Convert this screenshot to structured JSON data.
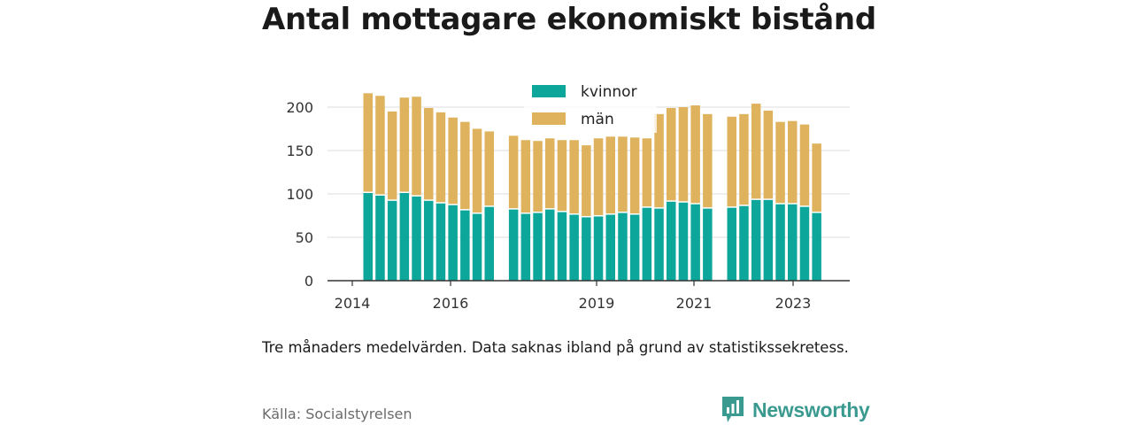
{
  "title": "Antal mottagare ekonomiskt bistånd",
  "note": "Tre månaders medelvärden. Data saknas ibland på grund av statistikssekretess.",
  "source": "Källa: Socialstyrelsen",
  "brand": {
    "name": "Newsworthy",
    "icon": "newsworthy-logo-icon",
    "color": "#3a9a8f"
  },
  "chart_data": {
    "type": "bar",
    "stacked": true,
    "x_ticks": [
      "2014",
      "2016",
      "2019",
      "2021",
      "2023"
    ],
    "y_ticks": [
      0,
      50,
      100,
      150,
      200
    ],
    "ylim": [
      0,
      225
    ],
    "grid": true,
    "legend_position": "top-center",
    "series": [
      {
        "name": "kvinnor",
        "color": "#0ca69a",
        "values": [
          101,
          98,
          92,
          101,
          97,
          92,
          89,
          87,
          81,
          77,
          85,
          null,
          82,
          77,
          78,
          82,
          79,
          76,
          73,
          74,
          76,
          78,
          76,
          84,
          83,
          91,
          90,
          88,
          83,
          null,
          84,
          86,
          93,
          93,
          88,
          88,
          85,
          78
        ]
      },
      {
        "name": "män",
        "color": "#dfb25e",
        "values": [
          115,
          115,
          103,
          110,
          115,
          107,
          105,
          101,
          102,
          98,
          87,
          null,
          85,
          85,
          83,
          82,
          83,
          86,
          83,
          90,
          90,
          88,
          89,
          80,
          109,
          108,
          110,
          114,
          109,
          null,
          105,
          106,
          111,
          103,
          95,
          96,
          95,
          80
        ]
      }
    ]
  }
}
